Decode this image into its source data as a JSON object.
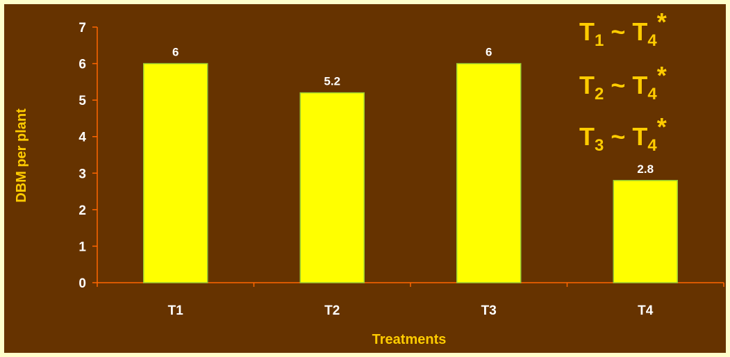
{
  "colors": {
    "page_bg": "#ffffcc",
    "plot_bg": "#663300",
    "bar_fill": "#ffff00",
    "bar_stroke": "#99cc33",
    "axis": "#ff6600",
    "tick_text": "#ffffff",
    "title_text": "#ffcc00"
  },
  "chart_data": {
    "type": "bar",
    "title": "",
    "xlabel": "Treatments",
    "ylabel": "DBM per plant",
    "categories": [
      "T1",
      "T2",
      "T3",
      "T4"
    ],
    "values": [
      6,
      5.2,
      6,
      2.8
    ],
    "data_labels": [
      "6",
      "5.2",
      "6",
      "2.8"
    ],
    "ylim": [
      0,
      7
    ],
    "yticks": [
      0,
      1,
      2,
      3,
      4,
      5,
      6,
      7
    ],
    "grid": false,
    "legend": "none",
    "annotations": [
      {
        "main1": "T",
        "sub1": "1",
        "sep": " ~ ",
        "main2": "T",
        "sub2": "4",
        "mark": "*"
      },
      {
        "main1": "T",
        "sub1": "2",
        "sep": " ~ ",
        "main2": "T",
        "sub2": "4",
        "mark": "*"
      },
      {
        "main1": "T",
        "sub1": "3",
        "sep": " ~ ",
        "main2": "T",
        "sub2": "4",
        "mark": "*"
      }
    ]
  }
}
